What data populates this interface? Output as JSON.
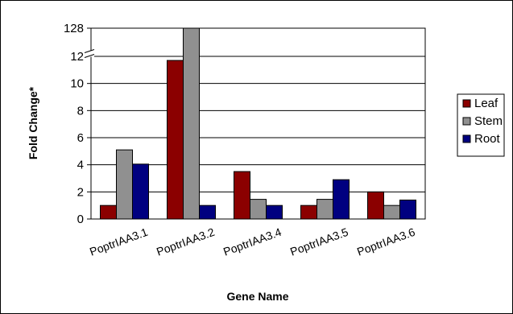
{
  "chart_data": {
    "type": "bar",
    "title": "",
    "xlabel": "Gene Name",
    "ylabel": "Fold Change*",
    "categories": [
      "PoptrIAA3.1",
      "PoptrIAA3.2",
      "PoptrIAA3.4",
      "PoptrIAA3.5",
      "PoptrIAA3.6"
    ],
    "series": [
      {
        "name": "Leaf",
        "color": "#8B0000",
        "values": [
          1,
          11.7,
          3.5,
          1,
          2
        ]
      },
      {
        "name": "Stem",
        "color": "#909090",
        "values": [
          5.1,
          128,
          1.45,
          1.45,
          1
        ]
      },
      {
        "name": "Root",
        "color": "#000080",
        "values": [
          4.05,
          1,
          1,
          2.9,
          1.4
        ]
      }
    ],
    "ylim": [
      0,
      128
    ],
    "y_ticks": [
      "0",
      "2",
      "4",
      "6",
      "8",
      "10",
      "12",
      "128"
    ],
    "axis_break": {
      "from": 12,
      "to": 128
    },
    "grid": true,
    "legend_position": "right"
  }
}
